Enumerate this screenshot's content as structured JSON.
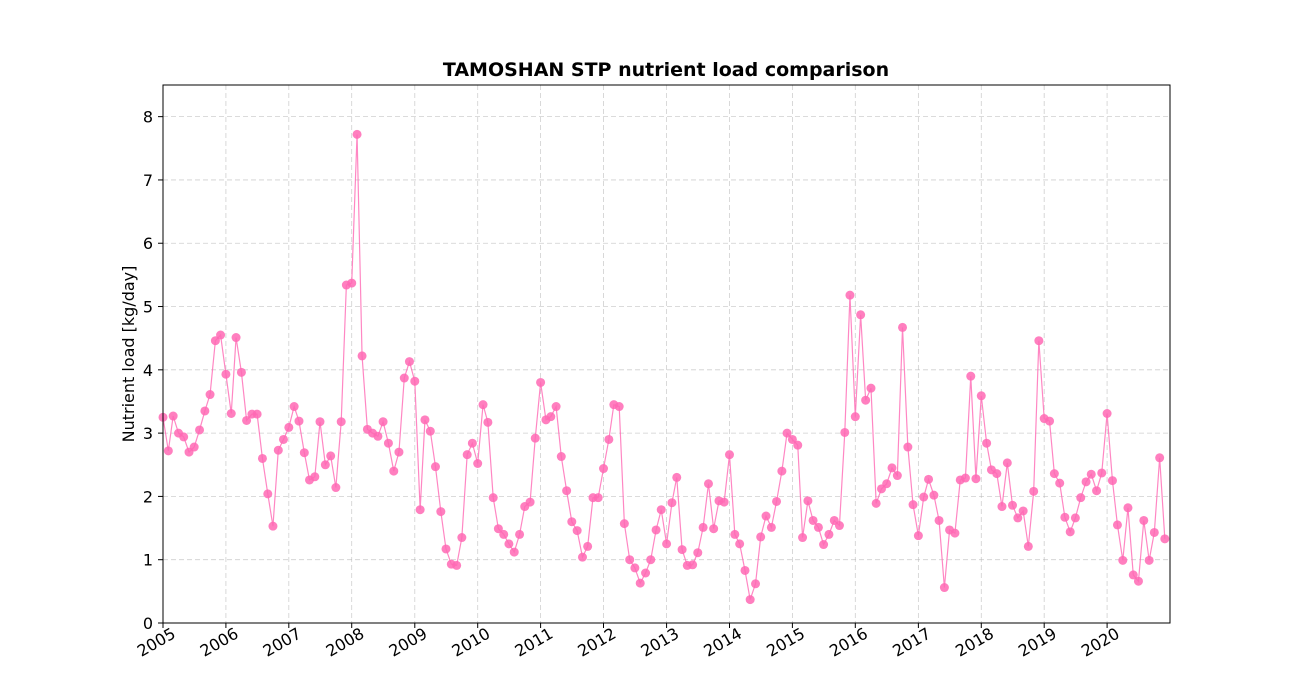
{
  "chart_data": {
    "type": "line",
    "title": "TAMOSHAN STP nutrient load comparison",
    "xlabel": "",
    "ylabel": "Nutrient load [kg/day]",
    "ylim": [
      0,
      8.5
    ],
    "xlim": [
      "2005-01-01",
      "2020-12-31"
    ],
    "yticks": [
      0,
      1,
      2,
      3,
      4,
      5,
      6,
      7,
      8
    ],
    "xticks": [
      "2005",
      "2006",
      "2007",
      "2008",
      "2009",
      "2010",
      "2011",
      "2012",
      "2013",
      "2014",
      "2015",
      "2016",
      "2017",
      "2018",
      "2019",
      "2020"
    ],
    "grid": true,
    "markers": true,
    "color": "#ff69b4",
    "series": [
      {
        "name": "",
        "x": [
          "2005-01",
          "2005-02",
          "2005-03",
          "2005-04",
          "2005-05",
          "2005-06",
          "2005-07",
          "2005-08",
          "2005-09",
          "2005-10",
          "2005-11",
          "2005-12",
          "2006-01",
          "2006-02",
          "2006-03",
          "2006-04",
          "2006-05",
          "2006-06",
          "2006-07",
          "2006-08",
          "2006-09",
          "2006-10",
          "2006-11",
          "2006-12",
          "2007-01",
          "2007-02",
          "2007-03",
          "2007-04",
          "2007-05",
          "2007-06",
          "2007-07",
          "2007-08",
          "2007-09",
          "2007-10",
          "2007-11",
          "2007-12",
          "2008-01",
          "2008-02",
          "2008-03",
          "2008-04",
          "2008-05",
          "2008-06",
          "2008-07",
          "2008-08",
          "2008-09",
          "2008-10",
          "2008-11",
          "2008-12",
          "2009-01",
          "2009-02",
          "2009-03",
          "2009-04",
          "2009-05",
          "2009-06",
          "2009-07",
          "2009-08",
          "2009-09",
          "2009-10",
          "2009-11",
          "2009-12",
          "2010-01",
          "2010-02",
          "2010-03",
          "2010-04",
          "2010-05",
          "2010-06",
          "2010-07",
          "2010-08",
          "2010-09",
          "2010-10",
          "2010-11",
          "2010-12",
          "2011-01",
          "2011-02",
          "2011-03",
          "2011-04",
          "2011-05",
          "2011-06",
          "2011-07",
          "2011-08",
          "2011-09",
          "2011-10",
          "2011-11",
          "2011-12",
          "2012-01",
          "2012-02",
          "2012-03",
          "2012-04",
          "2012-05",
          "2012-06",
          "2012-07",
          "2012-08",
          "2012-09",
          "2012-10",
          "2012-11",
          "2012-12",
          "2013-01",
          "2013-02",
          "2013-03",
          "2013-04",
          "2013-05",
          "2013-06",
          "2013-07",
          "2013-08",
          "2013-09",
          "2013-10",
          "2013-11",
          "2013-12",
          "2014-01",
          "2014-02",
          "2014-03",
          "2014-04",
          "2014-05",
          "2014-06",
          "2014-07",
          "2014-08",
          "2014-09",
          "2014-10",
          "2014-11",
          "2014-12",
          "2015-01",
          "2015-02",
          "2015-03",
          "2015-04",
          "2015-05",
          "2015-06",
          "2015-07",
          "2015-08",
          "2015-09",
          "2015-10",
          "2015-11",
          "2015-12",
          "2016-01",
          "2016-02",
          "2016-03",
          "2016-04",
          "2016-05",
          "2016-06",
          "2016-07",
          "2016-08",
          "2016-09",
          "2016-10",
          "2016-11",
          "2016-12",
          "2017-01",
          "2017-02",
          "2017-03",
          "2017-04",
          "2017-05",
          "2017-06",
          "2017-07",
          "2017-08",
          "2017-09",
          "2017-10",
          "2017-11",
          "2017-12",
          "2018-01",
          "2018-02",
          "2018-03",
          "2018-04",
          "2018-05",
          "2018-06",
          "2018-07",
          "2018-08",
          "2018-09",
          "2018-10",
          "2018-11",
          "2018-12",
          "2019-01",
          "2019-02",
          "2019-03",
          "2019-04",
          "2019-05",
          "2019-06",
          "2019-07",
          "2019-08",
          "2019-09",
          "2019-10",
          "2019-11",
          "2019-12",
          "2020-01",
          "2020-02",
          "2020-03",
          "2020-04",
          "2020-05",
          "2020-06",
          "2020-07",
          "2020-08",
          "2020-09",
          "2020-10",
          "2020-11",
          "2020-12"
        ],
        "values": [
          3.25,
          2.72,
          3.27,
          3.0,
          2.94,
          2.7,
          2.78,
          3.05,
          3.35,
          3.61,
          4.46,
          4.55,
          3.93,
          3.31,
          4.51,
          3.96,
          3.2,
          3.3,
          3.3,
          2.6,
          2.04,
          1.53,
          2.73,
          2.9,
          3.09,
          3.42,
          3.19,
          2.69,
          2.26,
          2.31,
          3.18,
          2.5,
          2.64,
          2.14,
          3.18,
          5.34,
          5.37,
          7.72,
          4.22,
          3.06,
          3.0,
          2.95,
          3.18,
          2.84,
          2.4,
          2.7,
          3.87,
          4.13,
          3.82,
          1.79,
          3.21,
          3.03,
          2.47,
          1.76,
          1.17,
          0.93,
          0.91,
          1.35,
          2.66,
          2.84,
          2.52,
          3.45,
          3.17,
          1.98,
          1.49,
          1.4,
          1.25,
          1.12,
          1.4,
          1.84,
          1.91,
          2.92,
          3.8,
          3.21,
          3.26,
          3.42,
          2.63,
          2.09,
          1.6,
          1.46,
          1.04,
          1.21,
          1.98,
          1.98,
          2.44,
          2.9,
          3.45,
          3.42,
          1.57,
          1.0,
          0.87,
          0.63,
          0.79,
          1.0,
          1.47,
          1.79,
          1.25,
          1.9,
          2.3,
          1.16,
          0.91,
          0.92,
          1.11,
          1.51,
          2.2,
          1.49,
          1.93,
          1.91,
          2.66,
          1.4,
          1.25,
          0.83,
          0.37,
          0.62,
          1.36,
          1.69,
          1.51,
          1.92,
          2.4,
          3.0,
          2.9,
          2.81,
          1.35,
          1.93,
          1.62,
          1.51,
          1.24,
          1.4,
          1.62,
          1.54,
          3.01,
          5.18,
          3.26,
          4.87,
          3.52,
          3.71,
          1.89,
          2.12,
          2.2,
          2.45,
          2.33,
          4.67,
          2.78,
          1.87,
          1.38,
          1.99,
          2.27,
          2.02,
          1.62,
          0.56,
          1.47,
          1.42,
          2.26,
          2.29,
          3.9,
          2.28,
          3.59,
          2.84,
          2.42,
          2.36,
          1.84,
          2.53,
          1.86,
          1.66,
          1.77,
          1.21,
          2.08,
          4.46,
          3.23,
          3.19,
          2.36,
          2.21,
          1.67,
          1.44,
          1.66,
          1.98,
          2.23,
          2.35,
          2.09,
          2.37,
          3.31,
          2.25,
          1.55,
          0.99,
          1.82,
          0.76,
          0.66,
          1.62,
          0.99,
          1.43,
          2.61,
          1.33
        ]
      }
    ]
  }
}
